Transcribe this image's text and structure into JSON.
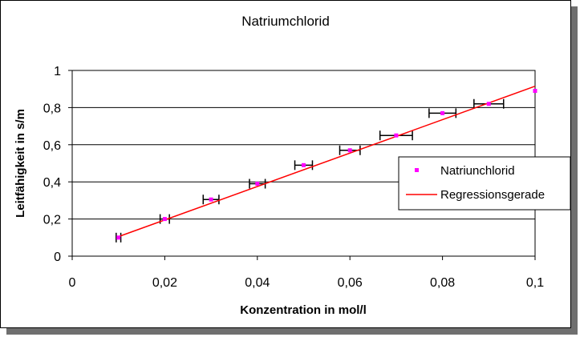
{
  "chart_data": {
    "type": "scatter",
    "title": "Natriumchlorid",
    "xlabel": "Konzentration in mol/l",
    "ylabel": "Leitfähigkeit in s/m",
    "xlim": [
      0,
      0.1
    ],
    "ylim": [
      0,
      1
    ],
    "x_ticks": [
      "0",
      "0,02",
      "0,04",
      "0,06",
      "0,08",
      "0,1"
    ],
    "y_ticks": [
      "0",
      "0,2",
      "0,4",
      "0,6",
      "0,8",
      "1"
    ],
    "grid": "horizontal",
    "legend_position": "right",
    "series": [
      {
        "name": "Natriunchlorid",
        "color": "#ff00ff",
        "x": [
          0.01,
          0.02,
          0.03,
          0.04,
          0.05,
          0.06,
          0.07,
          0.08,
          0.09,
          0.1
        ],
        "y": [
          0.1,
          0.2,
          0.305,
          0.39,
          0.49,
          0.57,
          0.65,
          0.77,
          0.82,
          0.89
        ],
        "x_error": [
          0.0005,
          0.001,
          0.0017,
          0.0017,
          0.0019,
          0.0022,
          0.0035,
          0.0029,
          0.0032,
          0.0
        ]
      },
      {
        "name": "Regressionsgerade",
        "color": "#ff0000",
        "type": "line",
        "x": [
          0.01,
          0.1
        ],
        "y": [
          0.105,
          0.915
        ]
      }
    ]
  }
}
